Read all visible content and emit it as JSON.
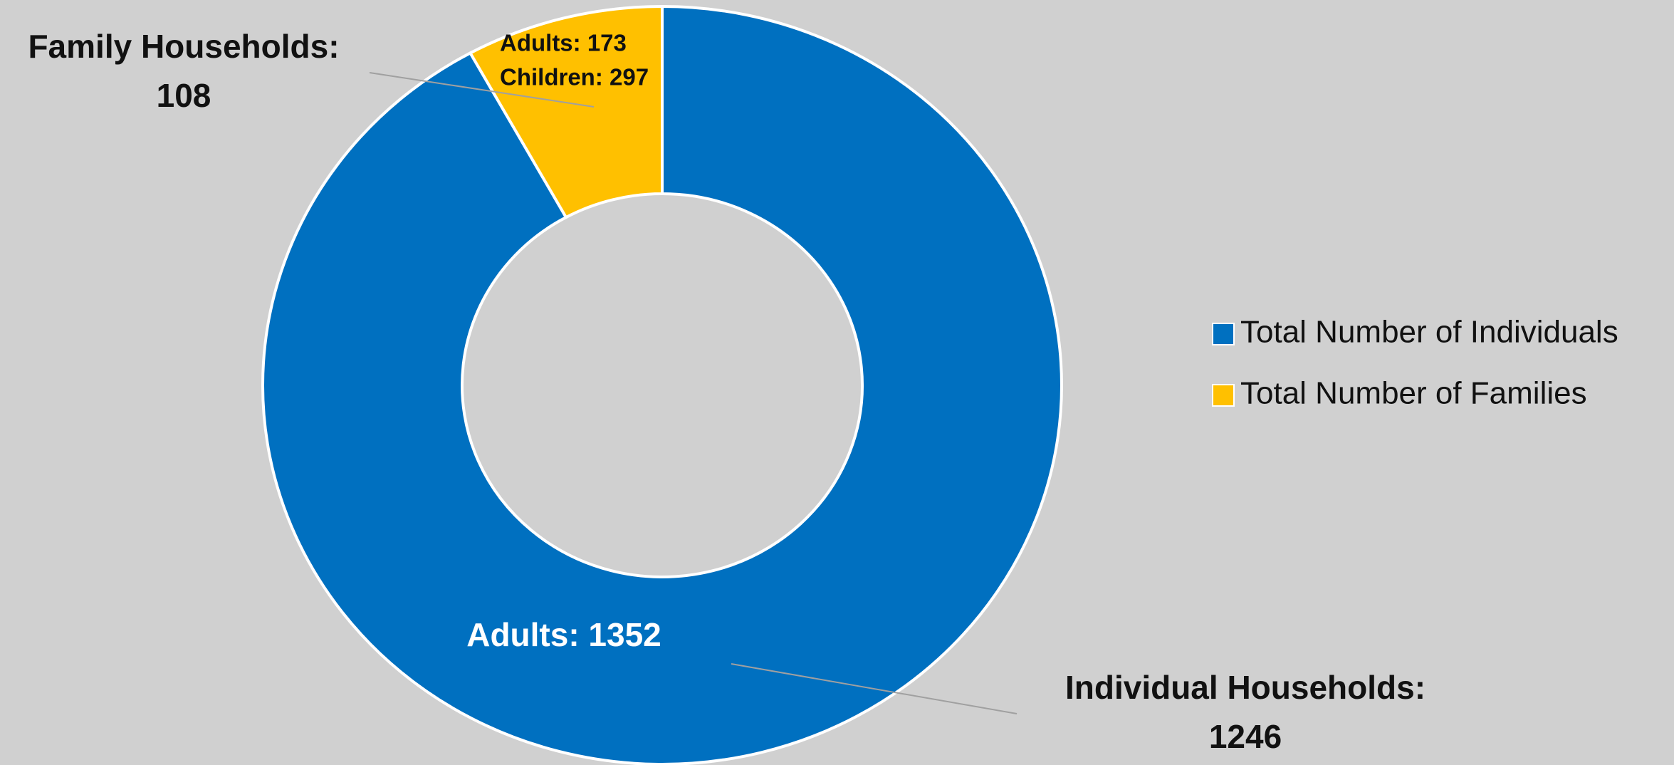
{
  "chart_data": {
    "type": "donut",
    "categories": [
      "Total Number of Individuals",
      "Total Number of Families"
    ],
    "values": [
      1246,
      108
    ],
    "colors": [
      "#0070c0",
      "#ffc000"
    ],
    "slice_titles": [
      "Individual Households:",
      "Family Households:"
    ],
    "annotations": [
      [
        "Adults: 1352"
      ],
      [
        "Adults: 173",
        "Children: 297"
      ]
    ],
    "legend": "right"
  }
}
